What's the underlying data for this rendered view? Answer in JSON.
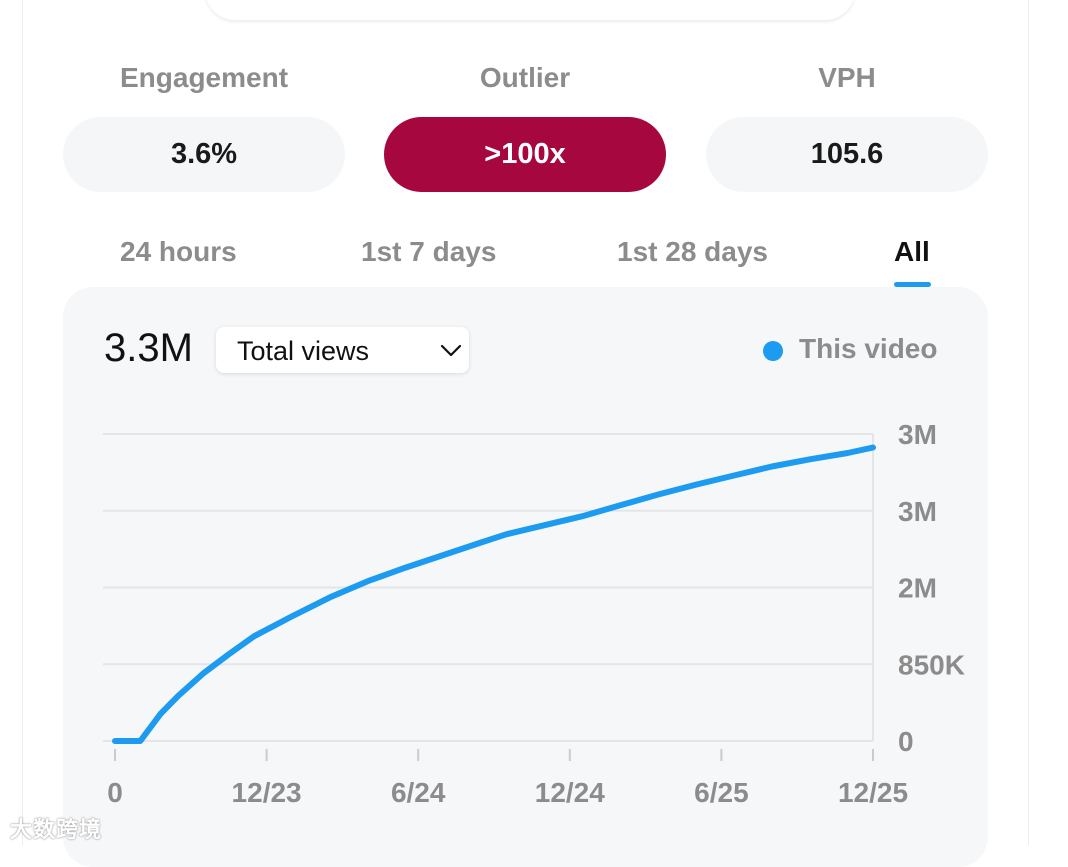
{
  "metrics": [
    {
      "label": "Engagement",
      "value": "3.6%"
    },
    {
      "label": "Outlier",
      "value": ">100x"
    },
    {
      "label": "VPH",
      "value": "105.6"
    }
  ],
  "colors": {
    "accent": "#1d9bf0",
    "outlier": "#a6073e",
    "muted": "#8c8c8c"
  },
  "tabs": [
    {
      "label": "24 hours",
      "active": false
    },
    {
      "label": "1st 7 days",
      "active": false
    },
    {
      "label": "1st 28 days",
      "active": false
    },
    {
      "label": "All",
      "active": true
    }
  ],
  "chart_header": {
    "total": "3.3M",
    "metric_select": "Total views",
    "legend": "This video"
  },
  "chart_data": {
    "type": "line",
    "title": "",
    "xlabel": "",
    "ylabel": "",
    "x_ticks": [
      "0",
      "12/23",
      "6/24",
      "12/24",
      "6/25",
      "12/25"
    ],
    "y_ticks": [
      "0",
      "850K",
      "2M",
      "3M",
      "3M"
    ],
    "y_tick_values": [
      0,
      850000,
      1700000,
      2550000,
      3400000
    ],
    "ylim": [
      0,
      3400000
    ],
    "xlim": [
      0,
      30
    ],
    "grid": true,
    "series": [
      {
        "name": "This video",
        "x": [
          0,
          1,
          1.8,
          2.5,
          3.5,
          4.5,
          5.5,
          7,
          8.5,
          10,
          11.5,
          13,
          14.5,
          15.5,
          17,
          18.5,
          20,
          21.5,
          23,
          24.5,
          26,
          27.5,
          29,
          30
        ],
        "y": [
          0,
          0,
          300000,
          500000,
          750000,
          960000,
          1160000,
          1380000,
          1590000,
          1770000,
          1920000,
          2060000,
          2200000,
          2290000,
          2390000,
          2490000,
          2610000,
          2730000,
          2840000,
          2940000,
          3040000,
          3120000,
          3190000,
          3250000
        ]
      }
    ]
  },
  "watermark": "大数跨境"
}
